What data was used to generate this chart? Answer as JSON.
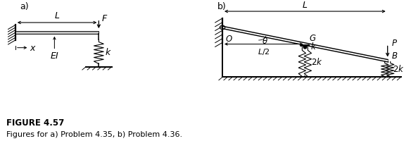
{
  "fig_width": 5.84,
  "fig_height": 2.01,
  "dpi": 100,
  "bg_color": "#ffffff",
  "title": "FIGURE 4.57",
  "subtitle": "Figures for a) Problem 4.35, b) Problem 4.36.",
  "title_fontsize": 8.5,
  "subtitle_fontsize": 8,
  "label_a": "a)",
  "label_b": "b)",
  "label_fontsize": 9,
  "xlim": [
    0,
    10
  ],
  "ylim": [
    0,
    3.6
  ],
  "lw": 0.8
}
